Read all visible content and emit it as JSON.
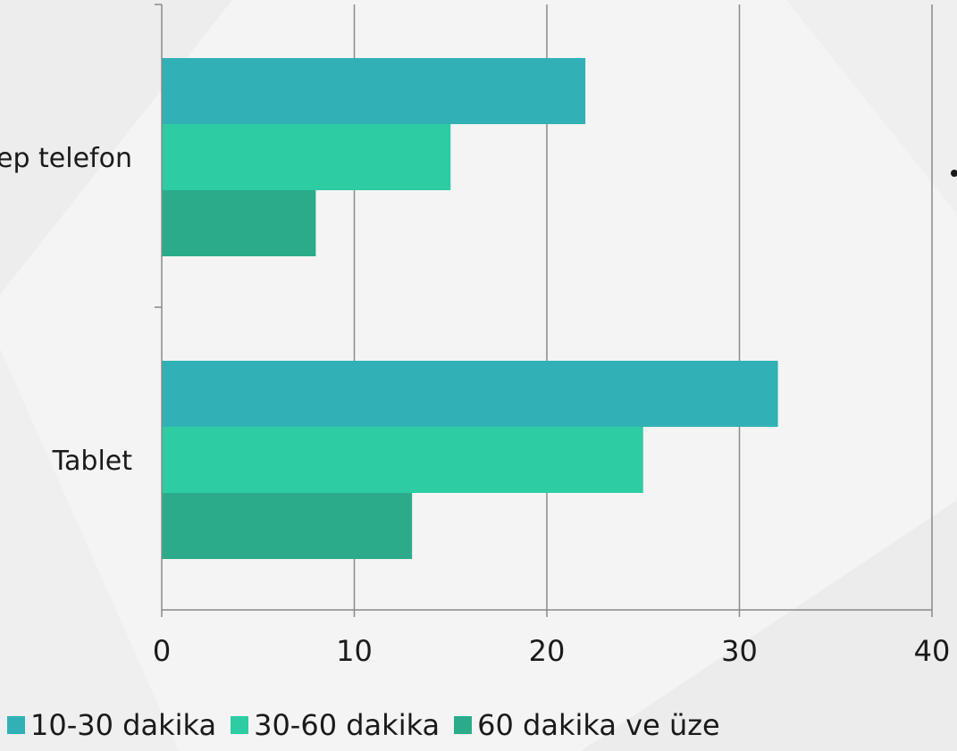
{
  "chart_data": {
    "type": "bar",
    "orientation": "horizontal",
    "categories": [
      "Tablet",
      "Cep telefon"
    ],
    "series": [
      {
        "name": "10-30 dakika",
        "values": [
          32,
          22
        ],
        "color": "#31b1b5"
      },
      {
        "name": "30-60 dakika",
        "values": [
          25,
          15
        ],
        "color": "#2ecca3"
      },
      {
        "name": "60 dakika ve üze",
        "values": [
          13,
          8
        ],
        "color": "#2bab8a"
      }
    ],
    "xlim": [
      0,
      40
    ],
    "xticks": [
      "0",
      "10",
      "20",
      "30",
      "40"
    ],
    "grid": true,
    "legend": "bottom"
  }
}
